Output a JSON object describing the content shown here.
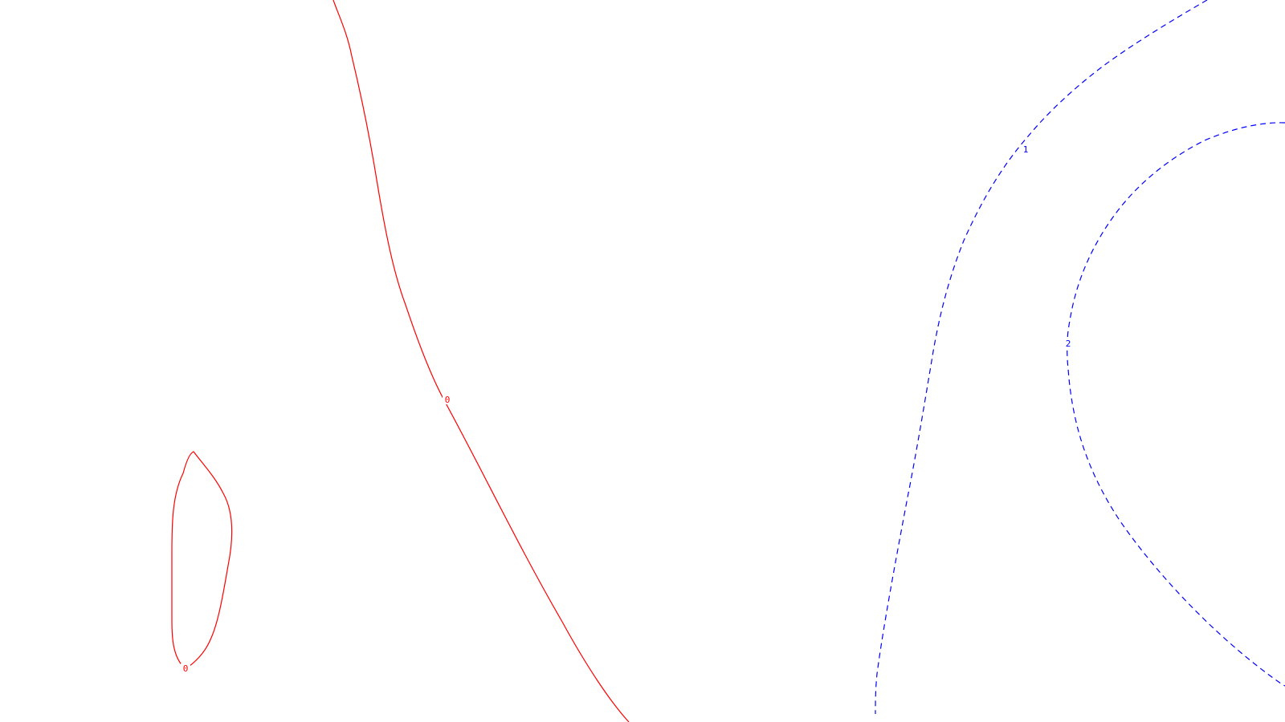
{
  "colors": {
    "background": "#ffffff",
    "zero_contour": "#ff0000",
    "positive_contour": "#0000ff"
  },
  "contours": [
    {
      "id": "loop-zero",
      "level_label": "0",
      "style": "solid",
      "color_key": "zero_contour"
    },
    {
      "id": "line-zero",
      "level_label": "0",
      "style": "solid",
      "color_key": "zero_contour"
    },
    {
      "id": "line-one",
      "level_label": "1",
      "style": "dashed",
      "color_key": "positive_contour"
    },
    {
      "id": "arc-two",
      "level_label": "2",
      "style": "dashed",
      "color_key": "positive_contour"
    }
  ]
}
